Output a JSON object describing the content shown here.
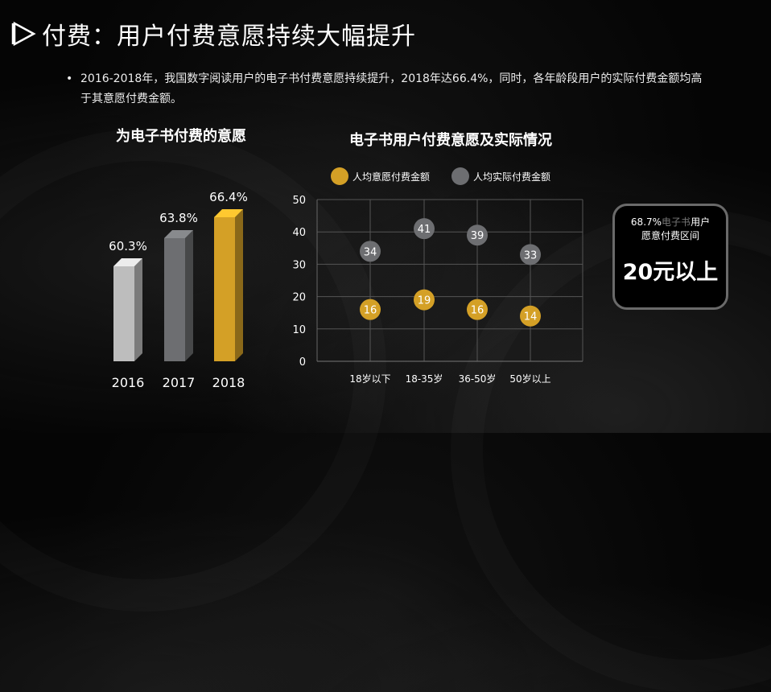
{
  "title": "付费：用户付费意愿持续大幅提升",
  "bullet": "2016-2018年，我国数字阅读用户的电子书付费意愿持续提升，2018年达66.4%，同时，各年龄段用户的实际付费金额均高于其意愿付费金额。",
  "callout": {
    "line_pre": "68.7%",
    "line_gray": "电子书",
    "line_post": "用户",
    "line2": "愿意付费区间",
    "big": "20元以上"
  },
  "chart_data": [
    {
      "type": "bar",
      "title": "为电子书付费的意愿",
      "categories": [
        "2016",
        "2017",
        "2018"
      ],
      "values": [
        60.3,
        63.8,
        66.4
      ],
      "value_labels": [
        "60.3%",
        "63.8%",
        "66.4%"
      ],
      "colors": [
        "#bdbdbd",
        "#6d6e71",
        "#d4a026"
      ]
    },
    {
      "type": "scatter",
      "title": "电子书用户付费意愿及实际情况",
      "categories": [
        "18岁以下",
        "18-35岁",
        "36-50岁",
        "50岁以上"
      ],
      "ylim": [
        0,
        50
      ],
      "yticks": [
        "0",
        "10",
        "20",
        "30",
        "40",
        "50"
      ],
      "grid": true,
      "legend_position": "top",
      "series": [
        {
          "name": "人均意愿付费金额",
          "color": "#d4a026",
          "values": [
            16,
            19,
            16,
            14
          ]
        },
        {
          "name": "人均实际付费金额",
          "color": "#6d6e71",
          "values": [
            34,
            41,
            39,
            33
          ]
        }
      ]
    }
  ]
}
